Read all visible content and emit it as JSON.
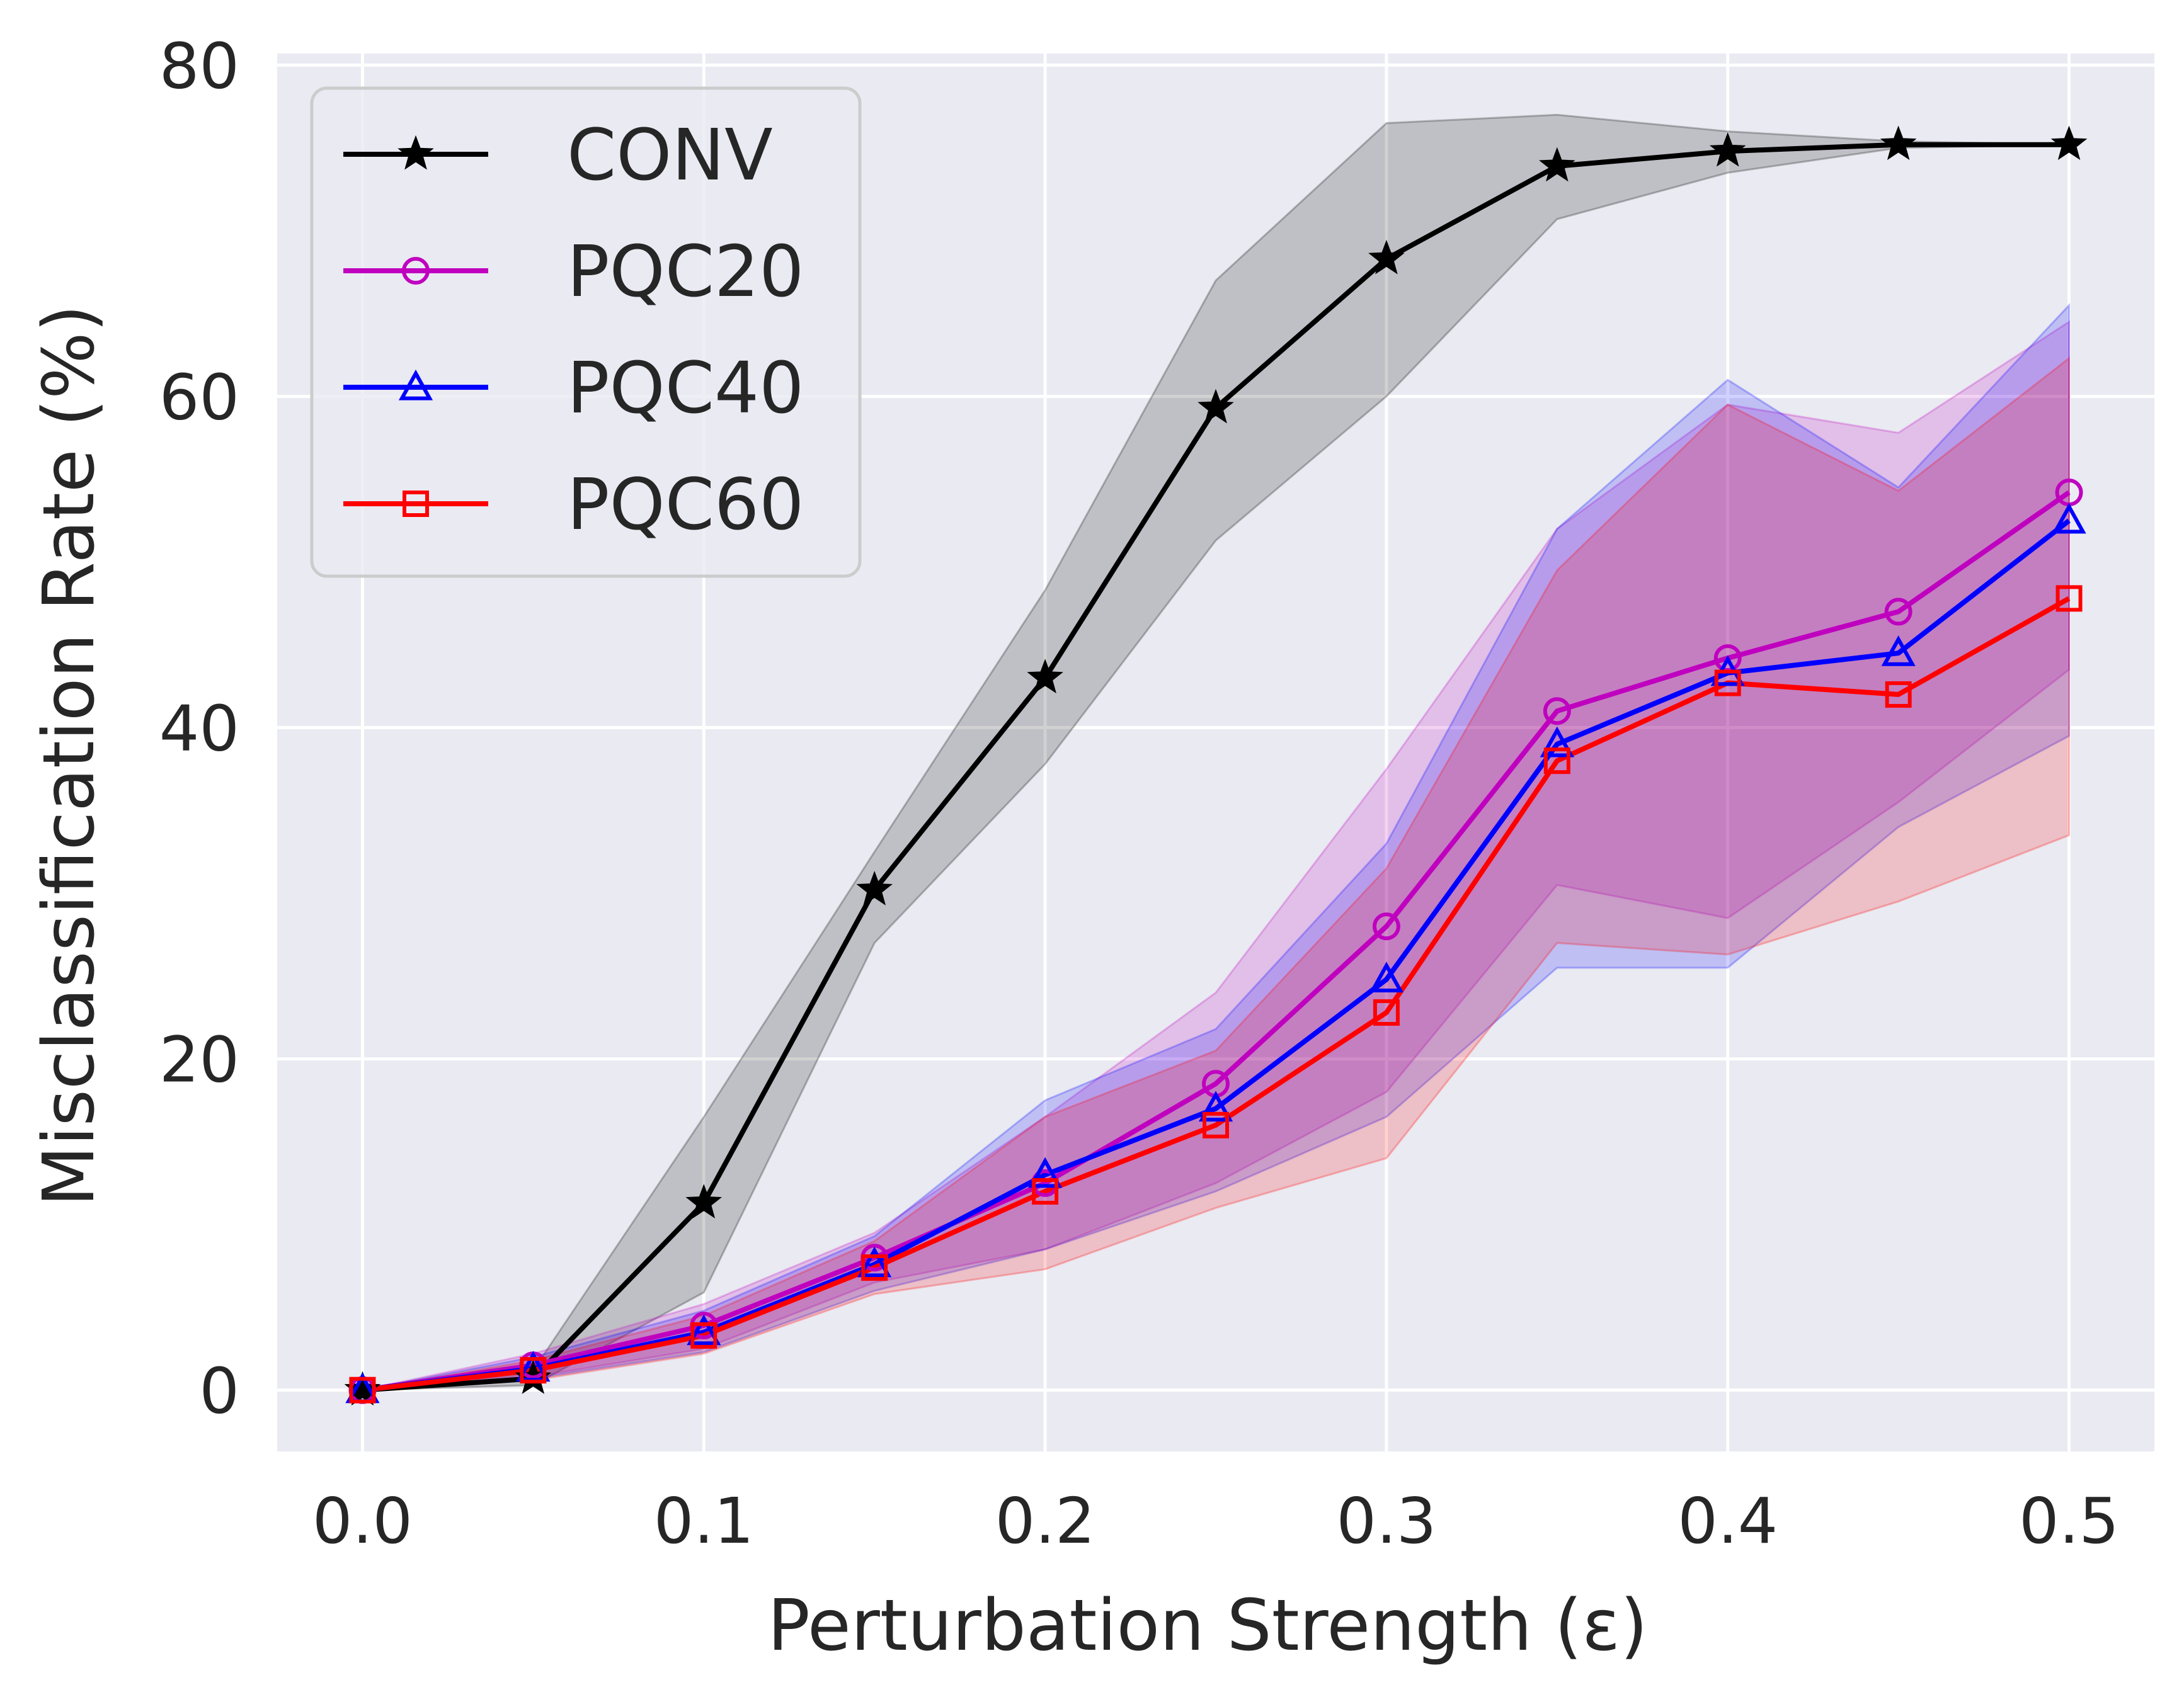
{
  "chart_data": {
    "type": "line",
    "title": "",
    "xlabel": "Perturbation Strength (ε)",
    "ylabel": "Misclassification Rate (%)",
    "xlim": [
      -0.025,
      0.525
    ],
    "ylim": [
      -3.7,
      80.7
    ],
    "xticks": [
      0.0,
      0.1,
      0.2,
      0.3,
      0.4,
      0.5
    ],
    "xtick_labels": [
      "0.0",
      "0.1",
      "0.2",
      "0.3",
      "0.4",
      "0.5"
    ],
    "yticks": [
      0,
      20,
      40,
      60,
      80
    ],
    "ytick_labels": [
      "0",
      "20",
      "40",
      "60",
      "80"
    ],
    "grid": true,
    "legend_position": "top-left",
    "x": [
      0.0,
      0.05,
      0.1,
      0.15,
      0.2,
      0.25,
      0.3,
      0.35,
      0.4,
      0.45,
      0.5
    ],
    "series": [
      {
        "name": "CONV",
        "color": "#000000",
        "marker": "star",
        "values": [
          0.0,
          0.7,
          11.3,
          30.2,
          43.0,
          59.3,
          68.3,
          73.9,
          74.8,
          75.2,
          75.2
        ],
        "lower": [
          0.0,
          0.3,
          5.9,
          27.0,
          37.8,
          51.3,
          60.0,
          70.7,
          73.5,
          75.0,
          75.2
        ],
        "upper": [
          0.0,
          1.2,
          16.5,
          32.5,
          48.3,
          67.0,
          76.5,
          77.0,
          76.0,
          75.4,
          75.2
        ]
      },
      {
        "name": "PQC20",
        "color": "#bf00bf",
        "marker": "circle",
        "values": [
          0.0,
          1.5,
          3.9,
          8.0,
          12.5,
          18.5,
          28.0,
          41.0,
          44.2,
          47.0,
          54.2
        ],
        "lower": [
          0.0,
          0.8,
          2.5,
          6.5,
          8.5,
          12.5,
          18.0,
          30.5,
          28.5,
          35.5,
          43.5
        ],
        "upper": [
          0.0,
          2.2,
          5.2,
          9.5,
          16.5,
          24.0,
          37.5,
          52.0,
          59.5,
          57.8,
          64.5
        ]
      },
      {
        "name": "PQC40",
        "color": "#0000ff",
        "marker": "triangle",
        "values": [
          0.0,
          1.3,
          3.5,
          7.6,
          13.0,
          17.0,
          24.8,
          39.0,
          43.3,
          44.5,
          52.5
        ],
        "lower": [
          0.0,
          0.7,
          2.3,
          6.0,
          8.5,
          12.0,
          16.5,
          25.5,
          25.5,
          34.0,
          39.5
        ],
        "upper": [
          0.0,
          2.0,
          4.8,
          9.3,
          17.5,
          21.8,
          33.0,
          52.0,
          61.0,
          54.5,
          65.5
        ]
      },
      {
        "name": "PQC60",
        "color": "#ff0000",
        "marker": "square",
        "values": [
          0.0,
          1.2,
          3.3,
          7.4,
          12.0,
          16.0,
          22.8,
          38.0,
          42.7,
          42.0,
          47.8
        ],
        "lower": [
          0.0,
          0.6,
          2.2,
          5.8,
          7.3,
          11.0,
          14.0,
          27.0,
          26.3,
          29.5,
          33.5
        ],
        "upper": [
          0.0,
          1.8,
          4.5,
          9.0,
          16.5,
          20.5,
          31.5,
          49.5,
          59.5,
          54.3,
          62.3
        ]
      }
    ]
  }
}
